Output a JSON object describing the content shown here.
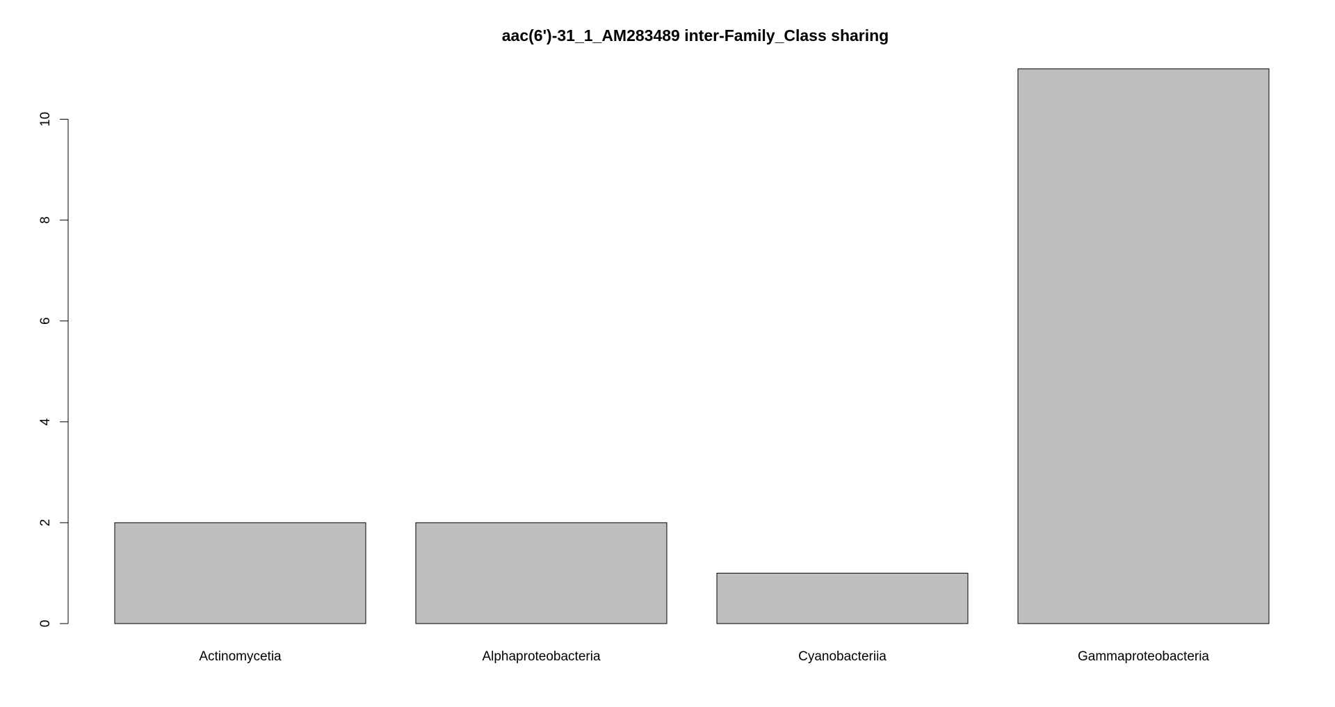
{
  "chart_data": {
    "type": "bar",
    "title": "aac(6')-31_1_AM283489 inter-Family_Class sharing",
    "xlabel": "",
    "ylabel": "",
    "categories": [
      "Actinomycetia",
      "Alphaproteobacteria",
      "Cyanobacteriia",
      "Gammaproteobacteria"
    ],
    "values": [
      2,
      2,
      1,
      11
    ],
    "yticks": [
      0,
      2,
      4,
      6,
      8,
      10
    ],
    "ylim": [
      0,
      11
    ],
    "bar_color": "#bebebe",
    "border_color": "#000000",
    "grid": false,
    "legend": "none"
  }
}
